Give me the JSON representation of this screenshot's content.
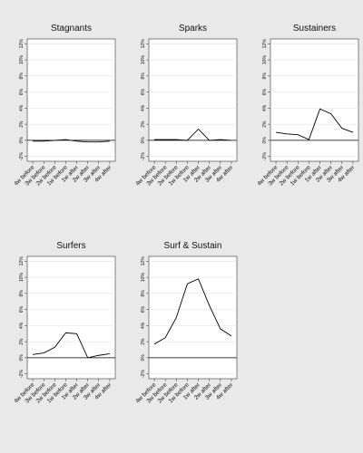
{
  "chart_data": [
    {
      "type": "line",
      "title": "Stagnants",
      "categories": [
        "4w before",
        "3w before",
        "2w before",
        "1w before",
        "1w after",
        "2w after",
        "3w after",
        "4w after"
      ],
      "values": [
        -0.1,
        -0.1,
        0,
        0.1,
        -0.1,
        -0.2,
        -0.2,
        -0.1
      ],
      "color": "#000000",
      "ylim": [
        -2.6,
        12.6
      ],
      "yticks": [
        {
          "value": -2,
          "label": "-2%"
        },
        {
          "value": 0,
          "label": "0%"
        },
        {
          "value": 2,
          "label": "2%"
        },
        {
          "value": 4,
          "label": "4%"
        },
        {
          "value": 6,
          "label": "6%"
        },
        {
          "value": 8,
          "label": "8%"
        },
        {
          "value": 10,
          "label": "10%"
        },
        {
          "value": 12,
          "label": "12%"
        }
      ],
      "grid": true,
      "reference_line": 0
    },
    {
      "type": "line",
      "title": "Sparks",
      "categories": [
        "4w before",
        "3w before",
        "2w before",
        "1w before",
        "1w after",
        "2w after",
        "3w after",
        "4w after"
      ],
      "values": [
        0.1,
        0.1,
        0.1,
        0,
        1.4,
        0,
        0.1,
        0
      ],
      "color": "#000000",
      "ylim": [
        -2.6,
        12.6
      ],
      "yticks": [
        {
          "value": -2,
          "label": "-2%"
        },
        {
          "value": 0,
          "label": "0%"
        },
        {
          "value": 2,
          "label": "2%"
        },
        {
          "value": 4,
          "label": "4%"
        },
        {
          "value": 6,
          "label": "6%"
        },
        {
          "value": 8,
          "label": "8%"
        },
        {
          "value": 10,
          "label": "10%"
        },
        {
          "value": 12,
          "label": "12%"
        }
      ],
      "grid": true,
      "reference_line": 0
    },
    {
      "type": "line",
      "title": "Sustainers",
      "categories": [
        "4w before",
        "3w before",
        "2w before",
        "1w before",
        "1w after",
        "2w after",
        "3w after",
        "4w after"
      ],
      "values": [
        1,
        0.8,
        0.7,
        0.1,
        3.9,
        3.3,
        1.5,
        1
      ],
      "color": "#000000",
      "ylim": [
        -2.6,
        12.6
      ],
      "yticks": [
        {
          "value": -2,
          "label": "-2%"
        },
        {
          "value": 0,
          "label": "0%"
        },
        {
          "value": 2,
          "label": "2%"
        },
        {
          "value": 4,
          "label": "4%"
        },
        {
          "value": 6,
          "label": "6%"
        },
        {
          "value": 8,
          "label": "8%"
        },
        {
          "value": 10,
          "label": "10%"
        },
        {
          "value": 12,
          "label": "12%"
        }
      ],
      "grid": true,
      "reference_line": 0
    },
    {
      "type": "line",
      "title": "Surfers",
      "categories": [
        "4w before",
        "3w before",
        "2w before",
        "1w before",
        "1w after",
        "2w after",
        "3w after",
        "4w after"
      ],
      "values": [
        0.4,
        0.6,
        1.3,
        3.1,
        3,
        0,
        0.3,
        0.5
      ],
      "color": "#000000",
      "ylim": [
        -2.6,
        12.6
      ],
      "yticks": [
        {
          "value": -2,
          "label": "-2%"
        },
        {
          "value": 0,
          "label": "0%"
        },
        {
          "value": 2,
          "label": "2%"
        },
        {
          "value": 4,
          "label": "4%"
        },
        {
          "value": 6,
          "label": "6%"
        },
        {
          "value": 8,
          "label": "8%"
        },
        {
          "value": 10,
          "label": "10%"
        },
        {
          "value": 12,
          "label": "12%"
        }
      ],
      "grid": true,
      "reference_line": 0
    },
    {
      "type": "line",
      "title": "Surf & Sustain",
      "categories": [
        "4w before",
        "3w before",
        "2w before",
        "1w before",
        "1w after",
        "2w after",
        "3w after",
        "4w after"
      ],
      "values": [
        1.7,
        2.5,
        5,
        9.2,
        9.8,
        6.5,
        3.6,
        2.7
      ],
      "color": "#000000",
      "ylim": [
        -2.6,
        12.6
      ],
      "yticks": [
        {
          "value": -2,
          "label": "-2%"
        },
        {
          "value": 0,
          "label": "0%"
        },
        {
          "value": 2,
          "label": "2%"
        },
        {
          "value": 4,
          "label": "4%"
        },
        {
          "value": 6,
          "label": "6%"
        },
        {
          "value": 8,
          "label": "8%"
        },
        {
          "value": 10,
          "label": "10%"
        },
        {
          "value": 12,
          "label": "12%"
        }
      ],
      "grid": true,
      "reference_line": 0
    }
  ]
}
